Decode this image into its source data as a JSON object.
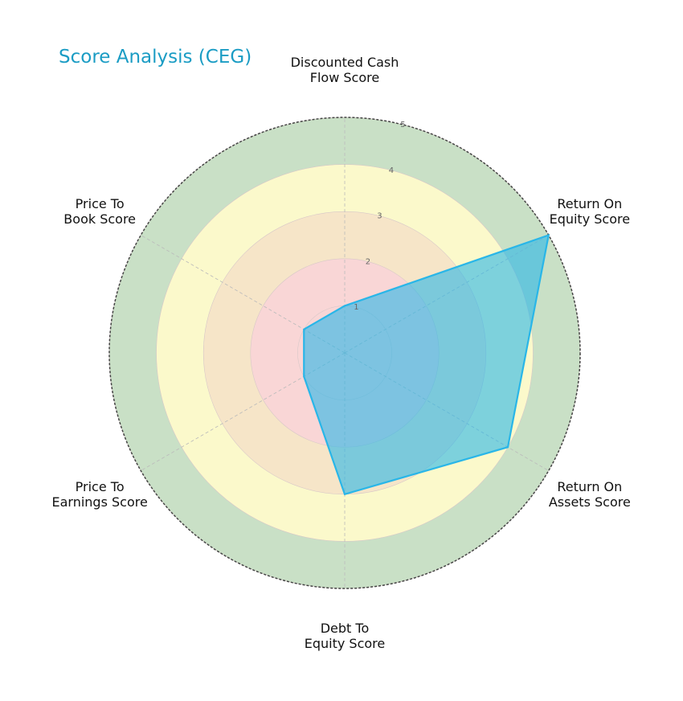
{
  "chart_data": {
    "type": "radar",
    "title": "Score Analysis (CEG)",
    "categories": [
      "Discounted Cash\nFlow Score",
      "Return On\nEquity Score",
      "Return On\nAssets Score",
      "Debt To\nEquity Score",
      "Price To\nEarnings Score",
      "Price To\nBook Score"
    ],
    "series": [
      {
        "name": "CEG",
        "color": "#29b6e8",
        "values": [
          1,
          5,
          4,
          3,
          1,
          1
        ]
      }
    ],
    "rlim": [
      0,
      5
    ],
    "rticks": [
      1,
      2,
      3,
      4,
      5
    ],
    "ring_colors": [
      "#f9d6d6",
      "#f9d6d6",
      "#f6e5c8",
      "#fbf9cb",
      "#c9e0c6"
    ],
    "grid": true
  }
}
